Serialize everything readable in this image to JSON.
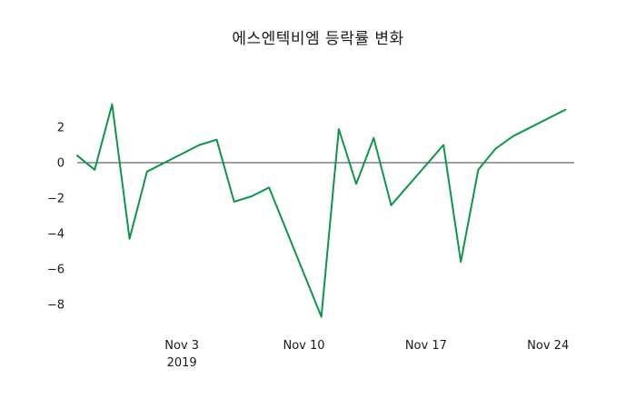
{
  "chart_data": {
    "type": "line",
    "title": "에스엔텍비엠 등락률 변화",
    "ylabel": "",
    "xlabel": "",
    "line_color": "#0e9648",
    "zero_line_color": "#000000",
    "text_color": "#1a1a1a",
    "background_color": "#ffffff",
    "grid": false,
    "legend": "none",
    "xlim": [
      0,
      28.5
    ],
    "ylim": [
      -9.7,
      3.8
    ],
    "y_ticks": [
      2,
      0,
      -2,
      -4,
      -6,
      -8
    ],
    "x_ticks": [
      {
        "offset": 6,
        "label": "Nov 3",
        "sublabel": "2019"
      },
      {
        "offset": 13,
        "label": "Nov 10"
      },
      {
        "offset": 20,
        "label": "Nov 17"
      },
      {
        "offset": 27,
        "label": "Nov 24"
      }
    ],
    "series": [
      {
        "name": "등락률",
        "dates": [
          "Oct 28",
          "Oct 29",
          "Oct 30",
          "Oct 31",
          "Nov 1",
          "Nov 4",
          "Nov 5",
          "Nov 6",
          "Nov 7",
          "Nov 8",
          "Nov 11",
          "Nov 12",
          "Nov 13",
          "Nov 14",
          "Nov 15",
          "Nov 18",
          "Nov 19",
          "Nov 20",
          "Nov 21",
          "Nov 22",
          "Nov 25"
        ],
        "x": [
          0,
          1,
          2,
          3,
          4,
          7,
          8,
          9,
          10,
          11,
          14,
          15,
          16,
          17,
          18,
          21,
          22,
          23,
          24,
          25,
          28
        ],
        "values": [
          0.4,
          -0.4,
          3.3,
          -4.3,
          -0.5,
          1.0,
          1.3,
          -2.2,
          -1.9,
          -1.4,
          -8.7,
          1.9,
          -1.2,
          1.4,
          -2.4,
          1.0,
          -5.6,
          -0.4,
          0.8,
          1.5,
          3.0
        ]
      }
    ]
  }
}
